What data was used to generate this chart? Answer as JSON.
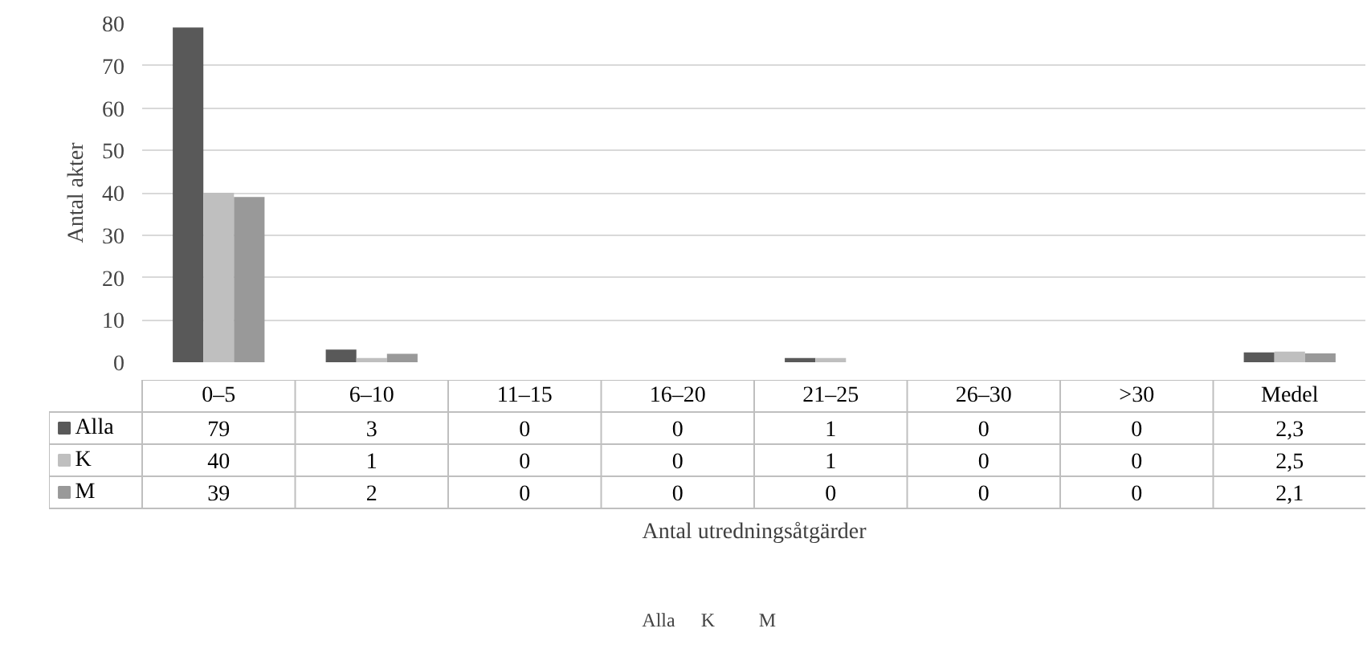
{
  "chart_data": {
    "type": "bar",
    "xlabel": "Antal utredningsåtgärder",
    "ylabel": "Antal akter",
    "categories": [
      "0–5",
      "6–10",
      "11–15",
      "16–20",
      "21–25",
      "26–30",
      ">30",
      "Medel"
    ],
    "series": [
      {
        "name": "Alla",
        "color": "#595959",
        "values": [
          79,
          3,
          0,
          0,
          1,
          0,
          0,
          2.3
        ],
        "value_labels": [
          "79",
          "3",
          "0",
          "0",
          "1",
          "0",
          "0",
          "2,3"
        ]
      },
      {
        "name": "K",
        "color": "#bfbfbf",
        "values": [
          40,
          1,
          0,
          0,
          1,
          0,
          0,
          2.5
        ],
        "value_labels": [
          "40",
          "1",
          "0",
          "0",
          "1",
          "0",
          "0",
          "2,5"
        ]
      },
      {
        "name": "M",
        "color": "#999999",
        "values": [
          39,
          2,
          0,
          0,
          0,
          0,
          0,
          2.1
        ],
        "value_labels": [
          "39",
          "2",
          "0",
          "0",
          "0",
          "0",
          "0",
          "2,1"
        ]
      }
    ],
    "ylim": [
      0,
      80
    ],
    "yticks": [
      0,
      10,
      20,
      30,
      40,
      50,
      60,
      70,
      80
    ],
    "grid": "y",
    "legend": "bottom"
  }
}
